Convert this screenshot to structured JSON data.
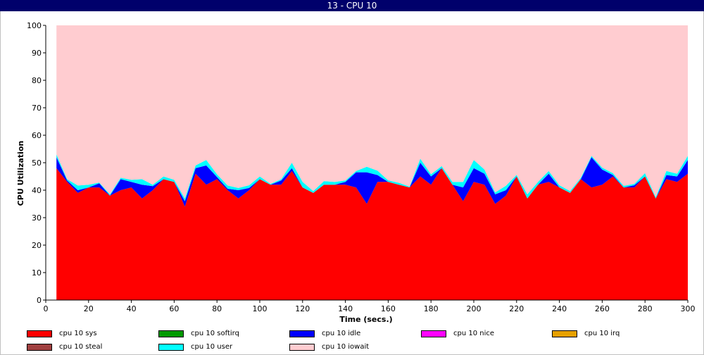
{
  "window": {
    "title": "13 - CPU 10"
  },
  "chart_data": {
    "type": "area",
    "stacked": true,
    "xlabel": "Time (secs.)",
    "ylabel": "CPU Utilization",
    "xlim": [
      0,
      300
    ],
    "ylim": [
      0,
      100
    ],
    "xticks": [
      0,
      20,
      40,
      60,
      80,
      100,
      120,
      140,
      160,
      180,
      200,
      220,
      240,
      260,
      280,
      300
    ],
    "yticks": [
      0,
      10,
      20,
      30,
      40,
      50,
      60,
      70,
      80,
      90,
      100
    ],
    "x": [
      5,
      10,
      15,
      20,
      25,
      30,
      35,
      40,
      45,
      50,
      55,
      60,
      65,
      70,
      75,
      80,
      85,
      90,
      95,
      100,
      105,
      110,
      115,
      120,
      125,
      130,
      135,
      140,
      145,
      150,
      155,
      160,
      165,
      170,
      175,
      180,
      185,
      190,
      195,
      200,
      205,
      210,
      215,
      220,
      225,
      230,
      235,
      240,
      245,
      250,
      255,
      260,
      265,
      270,
      275,
      280,
      285,
      290,
      295,
      300
    ],
    "series": [
      {
        "name": "cpu 10 sys",
        "color": "#ff0000",
        "values": [
          48,
          43,
          39,
          41,
          41,
          38,
          40,
          41,
          37,
          40,
          44,
          43,
          34,
          46,
          42,
          44,
          40,
          37,
          40,
          44,
          42,
          42,
          47,
          41,
          39,
          42,
          42,
          42,
          41,
          35,
          43,
          43,
          42,
          41,
          45,
          42,
          48,
          42,
          36,
          43,
          42,
          35,
          38,
          45,
          37,
          42,
          43,
          41,
          39,
          44,
          41,
          42,
          45,
          41,
          41,
          45,
          37,
          44,
          43,
          46
        ]
      },
      {
        "name": "cpu 10 softirq",
        "color": "#009900",
        "values": [
          0,
          0,
          0,
          0,
          0,
          0,
          0,
          0,
          0,
          0,
          0,
          0,
          0,
          0,
          0,
          0,
          0,
          0,
          0,
          0,
          0,
          0,
          0,
          0,
          0,
          0,
          0,
          0,
          0,
          0,
          0,
          0,
          0,
          0,
          0,
          0,
          0,
          0,
          0,
          0,
          0,
          0,
          0,
          0,
          0,
          0,
          0,
          0,
          0,
          0,
          0,
          0,
          0,
          0,
          0,
          0,
          0,
          0,
          0,
          0
        ]
      },
      {
        "name": "cpu 10 idle",
        "color": "#0000ff",
        "values": [
          4,
          0.5,
          1,
          0,
          1.5,
          0,
          4,
          2,
          5,
          1.5,
          0,
          0,
          2,
          2,
          7,
          0.8,
          0.5,
          3,
          0.8,
          0,
          0,
          1.5,
          1,
          0,
          0,
          0,
          0,
          1,
          5.5,
          11.5,
          2.5,
          0,
          0,
          0,
          5,
          3,
          0,
          0,
          5,
          5,
          4,
          3.5,
          2,
          0,
          0,
          0,
          3,
          0,
          0,
          0,
          11,
          5.5,
          0.5,
          0,
          0.8,
          0,
          0,
          1.5,
          2,
          5
        ]
      },
      {
        "name": "cpu 10 nice",
        "color": "#ff00ff",
        "values": [
          0,
          0,
          0,
          0,
          0,
          0,
          0,
          0,
          0,
          0,
          0,
          0,
          0,
          0,
          0,
          0,
          0,
          0,
          0,
          0,
          0,
          0,
          0,
          0,
          0,
          0,
          0,
          0,
          0,
          0,
          0,
          0,
          0,
          0,
          0,
          0,
          0,
          0,
          0,
          0,
          0,
          0,
          0,
          0,
          0,
          0,
          0,
          0,
          0,
          0,
          0,
          0,
          0,
          0,
          0,
          0,
          0,
          0,
          0,
          0
        ]
      },
      {
        "name": "cpu 10 irq",
        "color": "#e6a000",
        "values": [
          0,
          0,
          0,
          0,
          0,
          0,
          0,
          0,
          0,
          0,
          0,
          0,
          0,
          0,
          0,
          0,
          0,
          0,
          0,
          0,
          0,
          0,
          0,
          0,
          0,
          0,
          0,
          0,
          0,
          0,
          0,
          0,
          0,
          0,
          0,
          0,
          0,
          0,
          0,
          0,
          0,
          0,
          0,
          0,
          0,
          0,
          0,
          0,
          0,
          0,
          0,
          0,
          0,
          0,
          0,
          0,
          0,
          0,
          0,
          0
        ]
      },
      {
        "name": "cpu 10 steal",
        "color": "#a04040",
        "values": [
          0,
          0,
          0,
          0,
          0,
          0,
          0,
          0,
          0,
          0,
          0,
          0,
          0,
          0,
          0,
          0,
          0,
          0,
          0,
          0,
          0,
          0,
          0,
          0,
          0,
          0,
          0,
          0,
          0,
          0,
          0,
          0,
          0,
          0,
          0,
          0,
          0,
          0,
          0,
          0,
          0,
          0,
          0,
          0,
          0,
          0,
          0,
          0,
          0,
          0,
          0,
          0,
          0,
          0,
          0,
          0,
          0,
          0,
          0,
          0
        ]
      },
      {
        "name": "cpu 10 user",
        "color": "#00ffff",
        "values": [
          1,
          0.5,
          1.7,
          1,
          0.3,
          0.5,
          0.5,
          0.8,
          2,
          0.5,
          1,
          0.8,
          1,
          1,
          2,
          1,
          1.2,
          0.8,
          1,
          1,
          0.3,
          0.5,
          2,
          2,
          0.7,
          1.3,
          1,
          0.5,
          0.5,
          2,
          1.6,
          0.6,
          0.7,
          0.3,
          1.5,
          0.8,
          0.8,
          1,
          2,
          3,
          1.5,
          0.7,
          1.6,
          0.6,
          1.5,
          1,
          1,
          0.8,
          0.7,
          0.5,
          0.5,
          0.7,
          0.7,
          0.6,
          0.5,
          1.2,
          0.5,
          1.5,
          1,
          1.5
        ]
      },
      {
        "name": "cpu 10 iowait",
        "color": "#ffccd0",
        "values": [
          47,
          56,
          58.3,
          58,
          57.2,
          61.5,
          55.5,
          56.2,
          56,
          58,
          55,
          56.2,
          63,
          51,
          49,
          54.2,
          58.3,
          59.2,
          58.2,
          55,
          57.7,
          56,
          50,
          57,
          60.3,
          56.7,
          57,
          56.5,
          53,
          51.5,
          52.9,
          56.4,
          57.3,
          58.7,
          48.5,
          54.2,
          51.2,
          57,
          57,
          49,
          52.5,
          60.8,
          58.4,
          54.4,
          61.5,
          57,
          53,
          58.2,
          60.3,
          55.5,
          47.5,
          51.8,
          53.8,
          58.4,
          57.7,
          53.8,
          62.5,
          53,
          54,
          47.5
        ]
      }
    ]
  },
  "legend": [
    {
      "label": "cpu 10 sys",
      "color": "#ff0000"
    },
    {
      "label": "cpu 10 softirq",
      "color": "#009900"
    },
    {
      "label": "cpu 10 idle",
      "color": "#0000ff"
    },
    {
      "label": "cpu 10 nice",
      "color": "#ff00ff"
    },
    {
      "label": "cpu 10 irq",
      "color": "#e6a000"
    },
    {
      "label": "cpu 10 steal",
      "color": "#a04040"
    },
    {
      "label": "cpu 10 user",
      "color": "#00ffff"
    },
    {
      "label": "cpu 10 iowait",
      "color": "#ffccd0"
    }
  ]
}
